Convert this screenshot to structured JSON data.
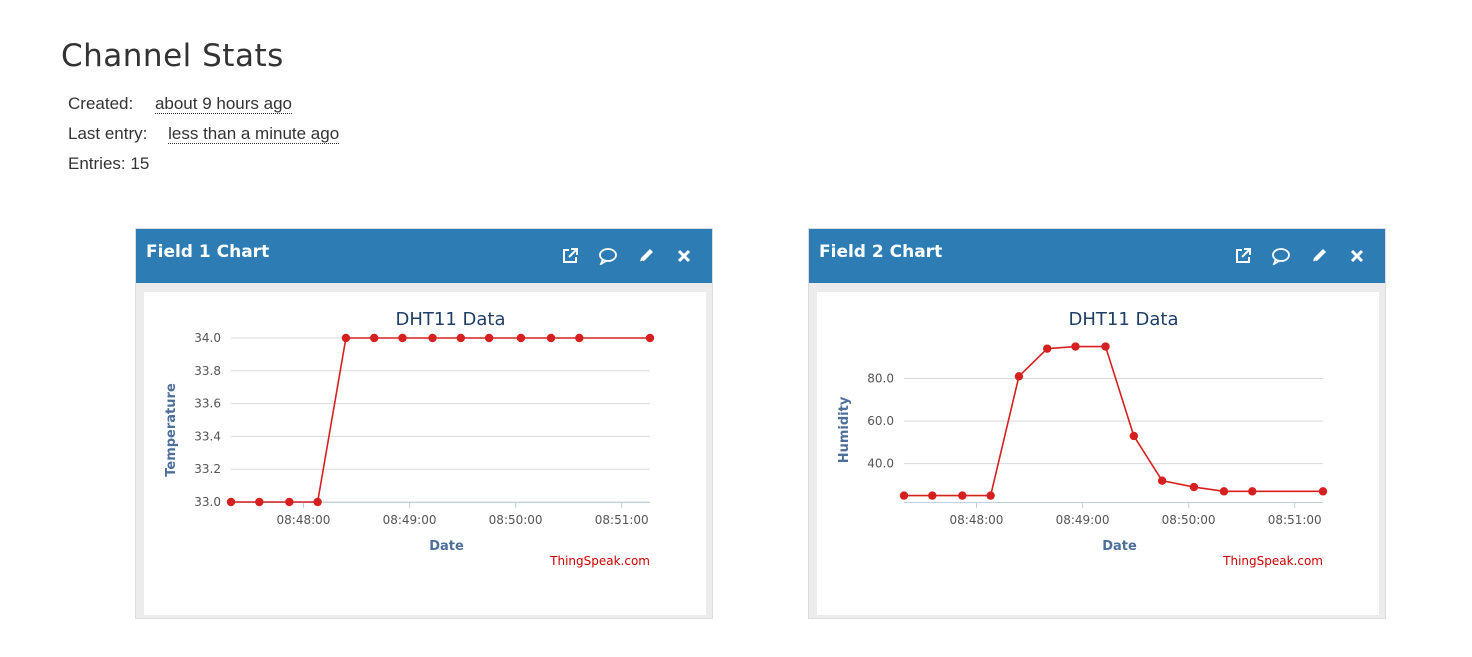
{
  "page": {
    "title": "Channel Stats"
  },
  "stats": {
    "created_label": "Created:",
    "created_value": "about 9 hours ago",
    "last_entry_label": "Last entry:",
    "last_entry_value": "less than a minute ago",
    "entries_label": "Entries:",
    "entries_value": "15"
  },
  "colors": {
    "header": "#2d7db4",
    "series": "#d62020",
    "title": "#1f3f66",
    "axis_label": "#4d6f9a",
    "credit": "#cc0000"
  },
  "widgets": [
    {
      "title": "Field 1 Chart",
      "tools": [
        "external-link-icon",
        "comment-icon",
        "pencil-icon",
        "close-icon"
      ],
      "chart_data": {
        "type": "line",
        "title": "DHT11 Data",
        "xlabel": "Date",
        "ylabel": "Temperature",
        "credit": "ThingSpeak.com",
        "x": [
          "08:47:19",
          "08:47:35",
          "08:47:52",
          "08:48:08",
          "08:48:24",
          "08:48:40",
          "08:48:56",
          "08:49:13",
          "08:49:29",
          "08:49:45",
          "08:50:03",
          "08:50:20",
          "08:50:36",
          "08:51:16"
        ],
        "y": [
          33.0,
          33.0,
          33.0,
          33.0,
          34.0,
          34.0,
          34.0,
          34.0,
          34.0,
          34.0,
          34.0,
          34.0,
          34.0,
          34.0
        ],
        "xticks": [
          "08:48:00",
          "08:49:00",
          "08:50:00",
          "08:51:00"
        ],
        "yticks": [
          "33.0",
          "33.2",
          "33.4",
          "33.6",
          "33.8",
          "34.0"
        ],
        "ylim": [
          33.0,
          34.0
        ],
        "grid": true
      }
    },
    {
      "title": "Field 2 Chart",
      "tools": [
        "external-link-icon",
        "comment-icon",
        "pencil-icon",
        "close-icon"
      ],
      "chart_data": {
        "type": "line",
        "title": "DHT11 Data",
        "xlabel": "Date",
        "ylabel": "Humidity",
        "credit": "ThingSpeak.com",
        "x": [
          "08:47:19",
          "08:47:35",
          "08:47:52",
          "08:48:08",
          "08:48:24",
          "08:48:40",
          "08:48:56",
          "08:49:13",
          "08:49:29",
          "08:49:45",
          "08:50:03",
          "08:50:20",
          "08:50:36",
          "08:51:16"
        ],
        "y": [
          25,
          25,
          25,
          25,
          81,
          94,
          95,
          95,
          53,
          32,
          29,
          27,
          27,
          27
        ],
        "xticks": [
          "08:48:00",
          "08:49:00",
          "08:50:00",
          "08:51:00"
        ],
        "yticks": [
          "40.0",
          "60.0",
          "80.0"
        ],
        "ylim": [
          22,
          99
        ],
        "grid": true
      }
    }
  ]
}
